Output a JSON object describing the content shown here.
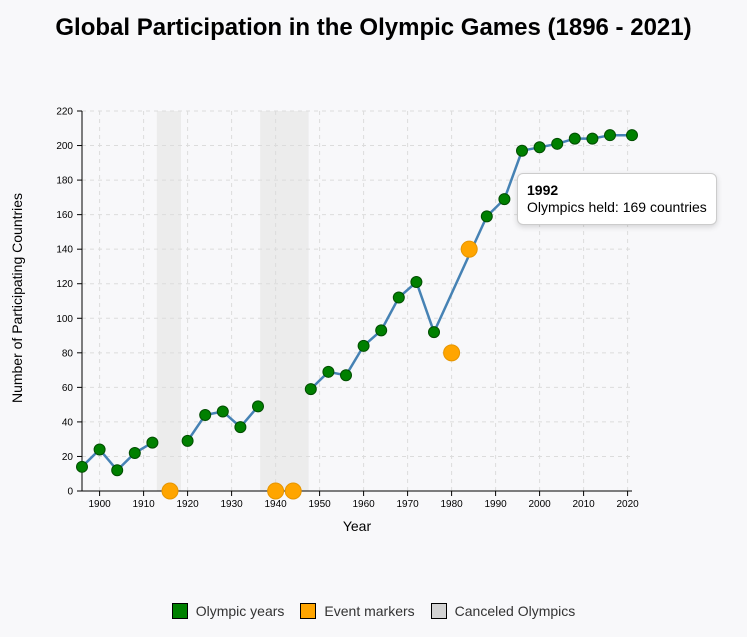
{
  "chart_data": {
    "type": "line",
    "title": "Global Participation in the Olympic Games (1896 - 2021)",
    "xlabel": "Year",
    "ylabel": "Number of Participating Countries",
    "xlim": [
      1896,
      2021
    ],
    "ylim": [
      0,
      220
    ],
    "x_ticks": [
      1900,
      1910,
      1920,
      1930,
      1940,
      1950,
      1960,
      1970,
      1980,
      1990,
      2000,
      2010,
      2020
    ],
    "y_ticks": [
      0,
      20,
      40,
      60,
      80,
      100,
      120,
      140,
      160,
      180,
      200,
      220
    ],
    "grid": true,
    "legend_position": "bottom",
    "colors": {
      "line": "#4682b4",
      "olympic": "#008000",
      "event": "#ffa500",
      "canceled": "#d3d3d3"
    },
    "series": [
      {
        "name": "Olympic years",
        "x": [
          1896,
          1900,
          1904,
          1908,
          1912,
          1920,
          1924,
          1928,
          1932,
          1936,
          1948,
          1952,
          1956,
          1960,
          1964,
          1968,
          1972,
          1976,
          1988,
          1992,
          1996,
          2000,
          2004,
          2008,
          2012,
          2016,
          2021
        ],
        "values": [
          14,
          24,
          12,
          22,
          28,
          29,
          44,
          46,
          37,
          49,
          59,
          69,
          67,
          84,
          93,
          112,
          121,
          92,
          159,
          169,
          197,
          199,
          201,
          204,
          204,
          206,
          206
        ]
      },
      {
        "name": "Event markers",
        "x": [
          1916,
          1940,
          1944,
          1980,
          1984
        ],
        "values": [
          0,
          0,
          0,
          80,
          140
        ]
      }
    ],
    "canceled_periods": [
      [
        1913,
        1918.5
      ],
      [
        1936.5,
        1947.5
      ]
    ],
    "legend": [
      "Olympic years",
      "Event markers",
      "Canceled Olympics"
    ],
    "tooltip": {
      "year": "1992",
      "text": "Olympics held: 169 countries"
    }
  }
}
